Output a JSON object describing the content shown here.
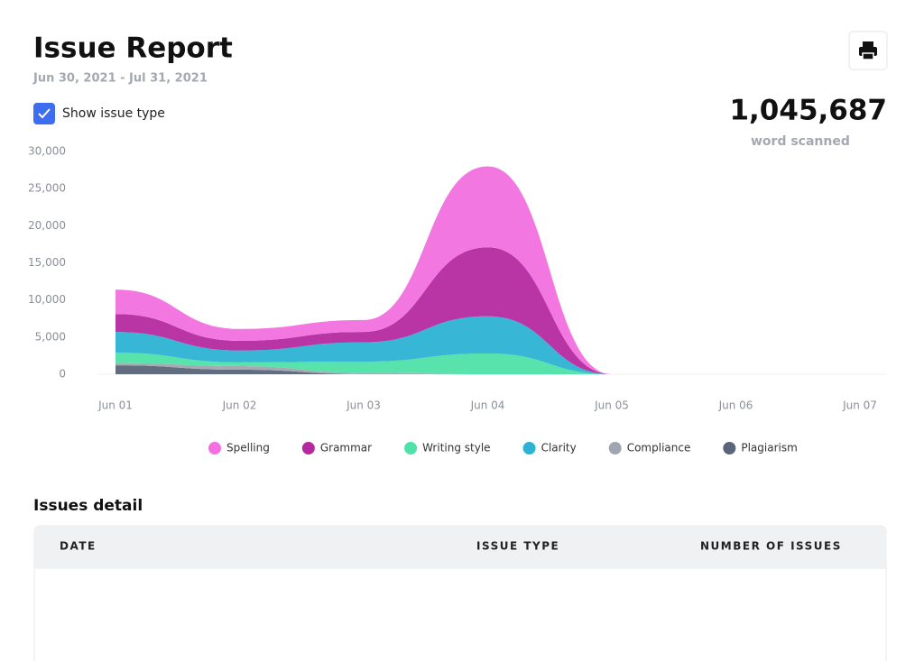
{
  "header": {
    "title": "Issue Report",
    "date_range": "Jun 30, 2021 - Jul 31, 2021"
  },
  "checkbox": {
    "label": "Show issue type",
    "checked": true
  },
  "summary": {
    "value": "1,045,687",
    "caption": "word scanned"
  },
  "chart_data": {
    "type": "stacked_area",
    "categories": [
      "Jun 01",
      "Jun 02",
      "Jun 03",
      "Jun 04",
      "Jun 05",
      "Jun 06",
      "Jun 07"
    ],
    "series": [
      {
        "name": "Spelling",
        "color": "#f270df",
        "values": [
          3300,
          1600,
          1600,
          10900,
          0,
          null,
          null
        ]
      },
      {
        "name": "Grammar",
        "color": "#b5299f",
        "values": [
          2400,
          1300,
          1400,
          9300,
          0,
          null,
          null
        ]
      },
      {
        "name": "Writing style",
        "color": "#4fe2a8",
        "values": [
          1400,
          500,
          1500,
          2800,
          0,
          null,
          null
        ]
      },
      {
        "name": "Clarity",
        "color": "#2db2d4",
        "values": [
          2800,
          1600,
          2600,
          5000,
          0,
          null,
          null
        ]
      },
      {
        "name": "Compliance",
        "color": "#a0a6b0",
        "values": [
          300,
          500,
          200,
          0,
          0,
          null,
          null
        ]
      },
      {
        "name": "Plagiarism",
        "color": "#5b6579",
        "values": [
          1200,
          600,
          0,
          0,
          0,
          null,
          null
        ]
      }
    ],
    "stack_order": [
      "Plagiarism",
      "Compliance",
      "Writing style",
      "Clarity",
      "Grammar",
      "Spelling"
    ],
    "ylim": [
      0,
      30000
    ],
    "yticks": [
      0,
      {
        "value": 5000,
        "label": "5,000"
      },
      {
        "value": 10000,
        "label": "10,000"
      },
      {
        "value": 15000,
        "label": "15,000"
      },
      {
        "value": 20000,
        "label": "20,000"
      },
      {
        "value": 25000,
        "label": "25,000"
      },
      {
        "value": 30000,
        "label": "30,000"
      }
    ],
    "grid": false,
    "legend": "bottom"
  },
  "table": {
    "title": "Issues detail",
    "columns": [
      "DATE",
      "ISSUE TYPE",
      "NUMBER OF ISSUES"
    ],
    "rows": []
  }
}
